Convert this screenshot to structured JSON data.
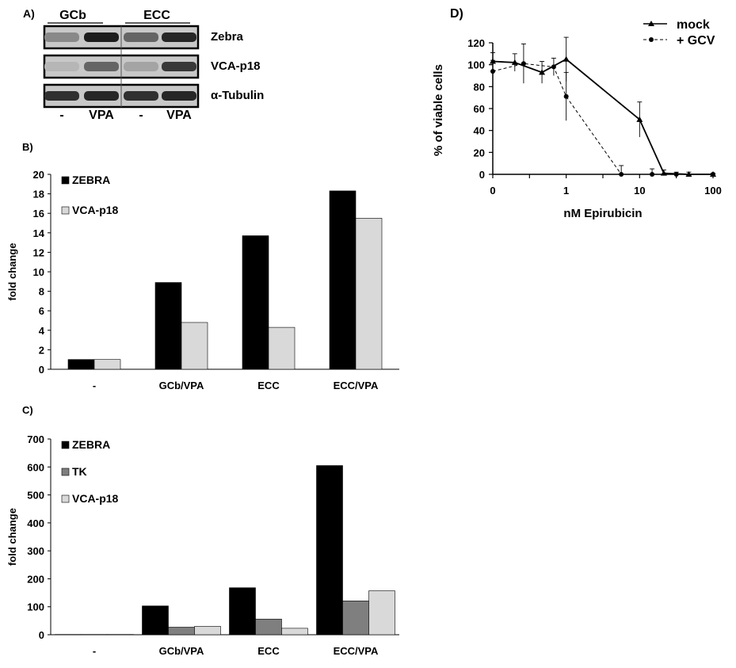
{
  "figure": {
    "panel_a": {
      "label": "A)",
      "groups": [
        "GCb",
        "ECC"
      ],
      "rows": [
        "Zebra",
        "VCA-p18",
        "α-Tubulin"
      ],
      "lanes": [
        "-",
        "VPA",
        "-",
        "VPA"
      ],
      "band_intensity": {
        "Zebra": [
          0.35,
          0.95,
          0.55,
          0.9
        ],
        "VCA-p18": [
          0.1,
          0.55,
          0.2,
          0.8
        ],
        "α-Tubulin": [
          0.85,
          0.9,
          0.85,
          0.9
        ]
      }
    },
    "panel_b_label": "B)",
    "panel_c_label": "C)",
    "panel_d_label": "D)"
  },
  "chart_data": [
    {
      "id": "B",
      "type": "bar",
      "categories": [
        "-",
        "GCb/VPA",
        "ECC",
        "ECC/VPA"
      ],
      "series": [
        {
          "name": "ZEBRA",
          "color": "#000000",
          "values": [
            1,
            8.9,
            13.7,
            18.3
          ]
        },
        {
          "name": "VCA-p18",
          "color": "#d9d9d9",
          "values": [
            1,
            4.8,
            4.3,
            15.5
          ]
        }
      ],
      "ylabel": "fold change",
      "ylim": [
        0,
        20
      ],
      "yticks": [
        0,
        2,
        4,
        6,
        8,
        10,
        12,
        14,
        16,
        18,
        20
      ],
      "legend": "top-left"
    },
    {
      "id": "C",
      "type": "bar",
      "categories": [
        "-",
        "GCb/VPA",
        "ECC",
        "ECC/VPA"
      ],
      "series": [
        {
          "name": "ZEBRA",
          "color": "#000000",
          "values": [
            1,
            103,
            168,
            605
          ]
        },
        {
          "name": "TK",
          "color": "#7f7f7f",
          "values": [
            1,
            27,
            56,
            121
          ]
        },
        {
          "name": "VCA-p18",
          "color": "#d9d9d9",
          "values": [
            1,
            30,
            23,
            157
          ]
        }
      ],
      "ylabel": "fold change",
      "ylim": [
        0,
        700
      ],
      "yticks": [
        0,
        100,
        200,
        300,
        400,
        500,
        600,
        700
      ],
      "legend": "top-left"
    },
    {
      "id": "D",
      "type": "line",
      "xlabel": "nM Epirubicin",
      "ylabel": "% of viable cells",
      "ylim": [
        0,
        120
      ],
      "yticks": [
        0,
        20,
        40,
        60,
        80,
        100,
        120
      ],
      "xtick_labels": [
        "0",
        "1",
        "10",
        "100"
      ],
      "x_display": [
        0,
        0.5,
        1,
        1.5,
        2,
        2.5,
        3
      ],
      "series": [
        {
          "name": "mock",
          "marker": "triangle",
          "dashed": false,
          "y": [
            103,
            102,
            93,
            105,
            50,
            1,
            0,
            0
          ],
          "err": [
            8,
            8,
            10,
            20,
            16,
            3,
            2,
            1
          ],
          "x_pos": [
            0,
            0.3,
            0.67,
            1,
            2,
            2.33,
            2.67,
            3
          ]
        },
        {
          "name": "+ GCV",
          "marker": "circle",
          "dashed": true,
          "y": [
            94,
            101,
            98,
            71,
            0,
            0,
            0,
            0
          ],
          "err": [
            10,
            18,
            8,
            22,
            8,
            5,
            2,
            1
          ],
          "x_pos": [
            0,
            0.42,
            0.83,
            1,
            1.75,
            2.17,
            2.5,
            3
          ]
        }
      ],
      "legend": "top-right"
    }
  ]
}
